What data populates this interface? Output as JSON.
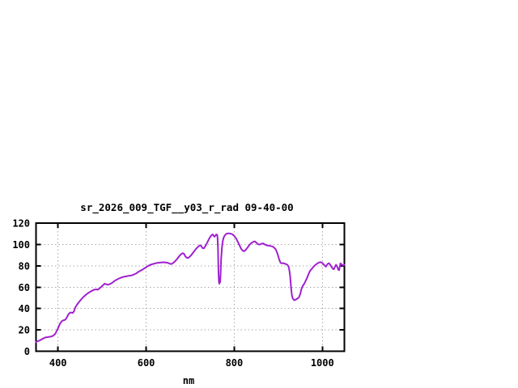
{
  "page": {
    "background": "#ffffff"
  },
  "chart_data": {
    "type": "line",
    "title": "sr_2026_009_TGF__y03_r_rad 09-40-00",
    "xlabel": "nm",
    "ylabel": "",
    "xlim": [
      350,
      1050
    ],
    "ylim": [
      0,
      120
    ],
    "xticks": [
      400,
      600,
      800,
      1000
    ],
    "yticks": [
      0,
      20,
      40,
      60,
      80,
      100,
      120
    ],
    "grid": true,
    "legend_position": "none",
    "colors": {
      "line": "#A020D0",
      "grid": "#A8A8A8",
      "frame": "#000000",
      "text": "#000000",
      "background": "#ffffff"
    },
    "series": [
      {
        "name": "sr_2026_009_TGF__y03_r_rad",
        "x": [
          350,
          352,
          355,
          358,
          361,
          364,
          368,
          372,
          376,
          380,
          384,
          388,
          391,
          394,
          397,
          400,
          403,
          406,
          409,
          412,
          415,
          418,
          421,
          424,
          427,
          430,
          433,
          436,
          439,
          443,
          447,
          451,
          455,
          459,
          463,
          467,
          471,
          475,
          479,
          483,
          487,
          490,
          494,
          498,
          502,
          506,
          510,
          513,
          517,
          521,
          525,
          529,
          533,
          537,
          541,
          545,
          550,
          555,
          560,
          565,
          570,
          574,
          578,
          583,
          588,
          593,
          598,
          603,
          608,
          613,
          618,
          623,
          628,
          633,
          638,
          643,
          648,
          652,
          656,
          659,
          663,
          667,
          671,
          675,
          679,
          683,
          686,
          689,
          692,
          695,
          698,
          702,
          706,
          710,
          714,
          718,
          722,
          725,
          728,
          731,
          734,
          738,
          742,
          746,
          749,
          751,
          753,
          755,
          757,
          759,
          761,
          762,
          763,
          764,
          765,
          766,
          767,
          768,
          769,
          770,
          772,
          774,
          776,
          778,
          781,
          784,
          788,
          792,
          796,
          800,
          804,
          808,
          812,
          816,
          820,
          823,
          826,
          830,
          834,
          838,
          842,
          846,
          850,
          854,
          858,
          862,
          866,
          870,
          874,
          878,
          882,
          886,
          890,
          894,
          898,
          902,
          905,
          908,
          911,
          914,
          917,
          920,
          923,
          925,
          927,
          929,
          931,
          933,
          936,
          939,
          943,
          947,
          950,
          953,
          956,
          959,
          962,
          965,
          968,
          971,
          974,
          977,
          981,
          986,
          991,
          996,
          1000,
          1004,
          1008,
          1012,
          1015,
          1018,
          1021,
          1024,
          1026,
          1029,
          1031,
          1034,
          1036,
          1038,
          1041,
          1044,
          1047,
          1050
        ],
        "y": [
          8.5,
          9.2,
          9.6,
          10.0,
          10.7,
          11.4,
          12.3,
          13.0,
          13.2,
          13.5,
          13.7,
          14.3,
          15.2,
          16.5,
          19.0,
          21.5,
          24.5,
          26.8,
          28.3,
          28.9,
          29.2,
          30.2,
          32.5,
          34.8,
          36.0,
          36.3,
          35.8,
          37.2,
          40.8,
          43.5,
          45.8,
          47.8,
          49.8,
          51.3,
          52.8,
          54.1,
          55.2,
          56.2,
          57.0,
          57.8,
          57.9,
          57.6,
          58.8,
          60.3,
          61.8,
          63.3,
          62.6,
          62.2,
          62.8,
          63.6,
          64.8,
          66.0,
          67.0,
          67.8,
          68.6,
          69.2,
          69.8,
          70.1,
          70.6,
          70.9,
          71.4,
          72.2,
          73.0,
          74.5,
          75.6,
          76.8,
          78.2,
          79.5,
          80.6,
          81.4,
          82.0,
          82.5,
          82.9,
          83.1,
          83.3,
          83.2,
          82.9,
          82.3,
          81.6,
          82.0,
          83.2,
          84.8,
          86.8,
          89.0,
          90.8,
          91.8,
          91.2,
          88.8,
          87.6,
          87.3,
          88.2,
          89.8,
          92.0,
          94.2,
          96.2,
          97.9,
          99.2,
          98.6,
          96.6,
          96.4,
          98.2,
          101.2,
          104.6,
          107.4,
          108.9,
          109.4,
          108.3,
          107.3,
          108.1,
          109.3,
          109.0,
          107.5,
          97.0,
          78.0,
          65.5,
          63.2,
          69.0,
          64.5,
          73.0,
          85.0,
          97.0,
          103.5,
          106.5,
          108.3,
          109.6,
          110.2,
          110.4,
          110.1,
          109.4,
          108.0,
          105.8,
          102.5,
          99.0,
          95.8,
          93.9,
          93.7,
          95.0,
          97.0,
          99.3,
          101.0,
          102.3,
          102.9,
          101.8,
          100.2,
          99.9,
          100.8,
          100.9,
          99.8,
          99.2,
          98.9,
          98.6,
          98.2,
          97.3,
          95.5,
          91.5,
          86.0,
          82.8,
          82.2,
          82.6,
          82.1,
          81.6,
          81.2,
          79.5,
          76.0,
          69.5,
          59.5,
          52.1,
          49.2,
          47.8,
          48.3,
          49.2,
          50.5,
          54.0,
          59.0,
          61.5,
          63.4,
          65.9,
          68.4,
          71.6,
          74.5,
          76.2,
          77.7,
          79.6,
          81.5,
          82.8,
          83.5,
          82.6,
          80.8,
          79.2,
          81.8,
          82.4,
          81.0,
          78.9,
          77.2,
          76.8,
          79.5,
          81.0,
          79.0,
          76.3,
          75.9,
          82.3,
          81.2,
          80.3,
          81.0
        ]
      }
    ]
  }
}
